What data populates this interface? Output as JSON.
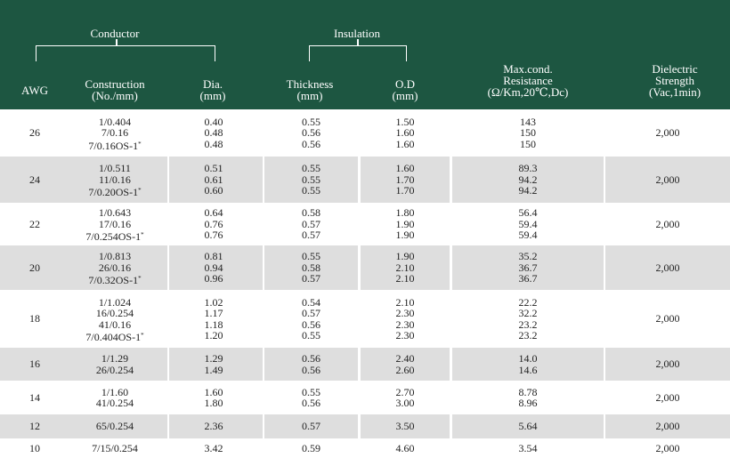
{
  "header": {
    "group_conductor": "Conductor",
    "group_insulation": "Insulation",
    "col_awg": "AWG",
    "col_construction_l1": "Construction",
    "col_construction_l2": "(No./mm)",
    "col_dia_l1": "Dia.",
    "col_dia_l2": "(mm)",
    "col_thickness_l1": "Thickness",
    "col_thickness_l2": "(mm)",
    "col_od_l1": "O.D",
    "col_od_l2": "(mm)",
    "col_res_l1": "Max.cond.",
    "col_res_l2": "Resistance",
    "col_res_l3": "(Ω/Km,20℃,Dc)",
    "col_diel_l1": "Dielectric",
    "col_diel_l2": "Strength",
    "col_diel_l3": "(Vac,1min)"
  },
  "star_mark": "*",
  "rows": [
    {
      "awg": "26",
      "construction": [
        "1/0.404",
        "7/0.16",
        "7/0.16OS-1"
      ],
      "star": [
        false,
        false,
        true
      ],
      "dia": [
        "0.40",
        "0.48",
        "0.48"
      ],
      "thickness": [
        "0.55",
        "0.56",
        "0.56"
      ],
      "od": [
        "1.50",
        "1.60",
        "1.60"
      ],
      "resistance": [
        "143",
        "150",
        "150"
      ],
      "dielectric": "2,000"
    },
    {
      "awg": "24",
      "construction": [
        "1/0.511",
        "11/0.16",
        "7/0.20OS-1"
      ],
      "star": [
        false,
        false,
        true
      ],
      "dia": [
        "0.51",
        "0.61",
        "0.60"
      ],
      "thickness": [
        "0.55",
        "0.55",
        "0.55"
      ],
      "od": [
        "1.60",
        "1.70",
        "1.70"
      ],
      "resistance": [
        "89.3",
        "94.2",
        "94.2"
      ],
      "dielectric": "2,000"
    },
    {
      "awg": "22",
      "construction": [
        "1/0.643",
        "17/0.16",
        "7/0.254OS-1"
      ],
      "star": [
        false,
        false,
        true
      ],
      "dia": [
        "0.64",
        "0.76",
        "0.76"
      ],
      "thickness": [
        "0.58",
        "0.57",
        "0.57"
      ],
      "od": [
        "1.80",
        "1.90",
        "1.90"
      ],
      "resistance": [
        "56.4",
        "59.4",
        "59.4"
      ],
      "dielectric": "2,000"
    },
    {
      "awg": "20",
      "construction": [
        "1/0.813",
        "26/0.16",
        "7/0.32OS-1"
      ],
      "star": [
        false,
        false,
        true
      ],
      "dia": [
        "0.81",
        "0.94",
        "0.96"
      ],
      "thickness": [
        "0.55",
        "0.58",
        "0.57"
      ],
      "od": [
        "1.90",
        "2.10",
        "2.10"
      ],
      "resistance": [
        "35.2",
        "36.7",
        "36.7"
      ],
      "dielectric": "2,000"
    },
    {
      "awg": "18",
      "construction": [
        "1/1.024",
        "16/0.254",
        "41/0.16",
        "7/0.404OS-1"
      ],
      "star": [
        false,
        false,
        false,
        true
      ],
      "dia": [
        "1.02",
        "1.17",
        "1.18",
        "1.20"
      ],
      "thickness": [
        "0.54",
        "0.57",
        "0.56",
        "0.55"
      ],
      "od": [
        "2.10",
        "2.30",
        "2.30",
        "2.30"
      ],
      "resistance": [
        "22.2",
        "32.2",
        "23.2",
        "23.2"
      ],
      "dielectric": "2,000"
    },
    {
      "awg": "16",
      "construction": [
        "1/1.29",
        "26/0.254"
      ],
      "star": [
        false,
        false
      ],
      "dia": [
        "1.29",
        "1.49"
      ],
      "thickness": [
        "0.56",
        "0.56"
      ],
      "od": [
        "2.40",
        "2.60"
      ],
      "resistance": [
        "14.0",
        "14.6"
      ],
      "dielectric": "2,000"
    },
    {
      "awg": "14",
      "construction": [
        "1/1.60",
        "41/0.254"
      ],
      "star": [
        false,
        false
      ],
      "dia": [
        "1.60",
        "1.80"
      ],
      "thickness": [
        "0.55",
        "0.56"
      ],
      "od": [
        "2.70",
        "3.00"
      ],
      "resistance": [
        "8.78",
        "8.96"
      ],
      "dielectric": "2,000"
    },
    {
      "awg": "12",
      "construction": [
        "65/0.254"
      ],
      "star": [
        false
      ],
      "dia": [
        "2.36"
      ],
      "thickness": [
        "0.57"
      ],
      "od": [
        "3.50"
      ],
      "resistance": [
        "5.64"
      ],
      "dielectric": "2,000"
    },
    {
      "awg": "10",
      "construction": [
        "7/15/0.254"
      ],
      "star": [
        false
      ],
      "dia": [
        "3.42"
      ],
      "thickness": [
        "0.59"
      ],
      "od": [
        "4.60"
      ],
      "resistance": [
        "3.54"
      ],
      "dielectric": "2,000"
    }
  ]
}
